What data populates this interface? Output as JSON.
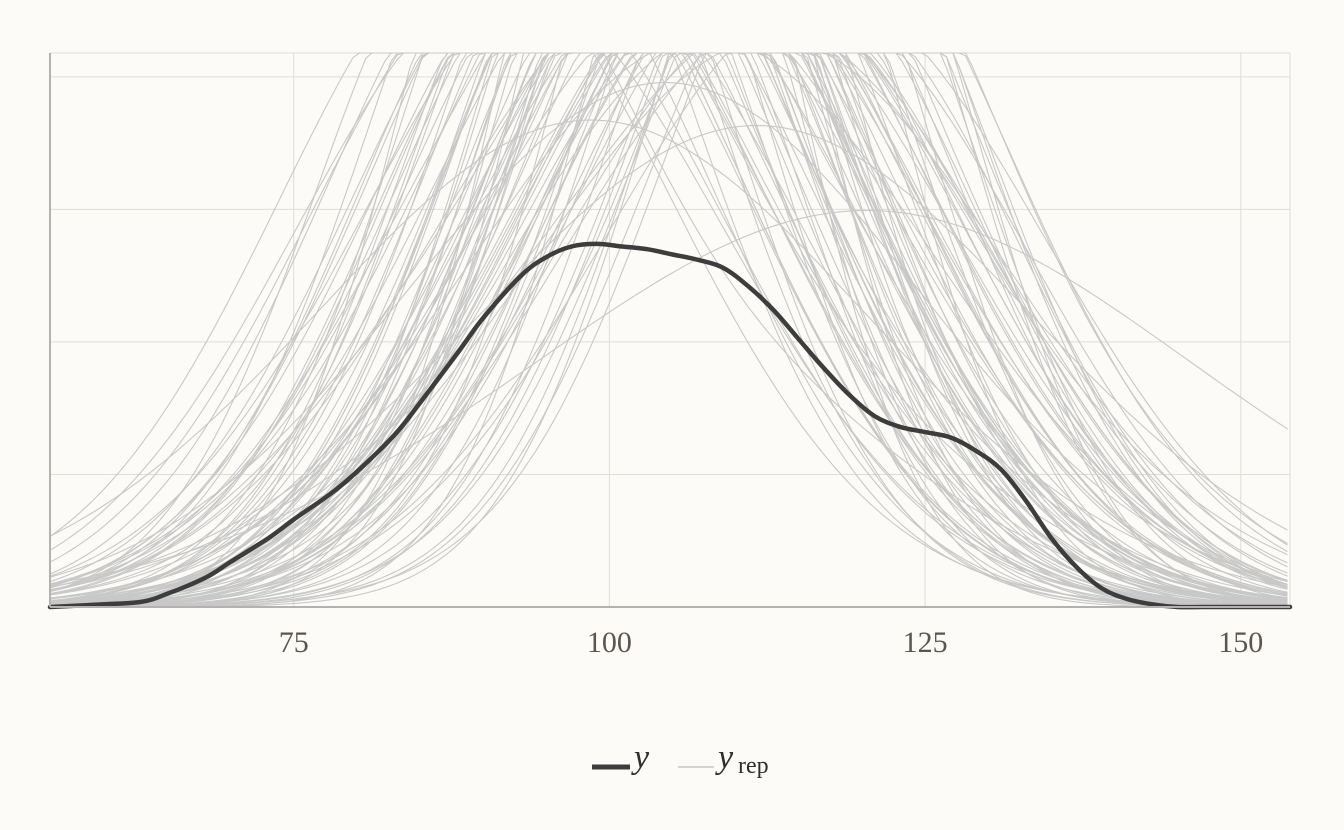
{
  "chart_data": {
    "type": "line",
    "title": "",
    "xlabel": "",
    "ylabel": "",
    "xlim": [
      55.7,
      153.9
    ],
    "ylim": [
      0,
      0.0209
    ],
    "x_ticks": [
      75,
      100,
      125,
      150
    ],
    "x_tick_labels": [
      "75",
      "100",
      "125",
      "150"
    ],
    "y_gridlines": [
      0.005,
      0.01,
      0.015,
      0.02
    ],
    "y_tick_labels_shown": false,
    "grid": true,
    "legend_position": "bottom",
    "legend": [
      {
        "key": "y",
        "label": "y",
        "style": "thick"
      },
      {
        "key": "yrep",
        "label": "y",
        "subscript": "rep",
        "style": "thin"
      }
    ],
    "colors": {
      "background": "#fcfbf7",
      "grid": "#e0ddd8",
      "axis": "#b5b2ad",
      "y_line": "#3d3d3d",
      "yrep_line": "#c8c8c8",
      "tick_text": "#5a5550"
    },
    "series": [
      {
        "name": "y",
        "x": [
          55.7,
          60,
          63,
          65,
          68,
          70,
          73,
          75,
          78,
          80,
          83,
          85,
          88,
          90,
          93,
          95,
          97,
          99,
          101,
          103,
          105,
          107,
          109,
          111,
          113,
          115,
          117,
          119,
          121,
          123,
          125,
          127,
          129,
          131,
          133,
          135,
          137,
          139,
          141,
          143,
          145,
          147,
          150,
          153.9
        ],
        "values": [
          0.0,
          0.0001,
          0.0002,
          0.0005,
          0.0011,
          0.0017,
          0.0026,
          0.0033,
          0.0043,
          0.0051,
          0.0065,
          0.0077,
          0.0096,
          0.0109,
          0.0125,
          0.0132,
          0.0136,
          0.0137,
          0.0136,
          0.0135,
          0.0133,
          0.0131,
          0.0128,
          0.0121,
          0.0112,
          0.0101,
          0.009,
          0.008,
          0.0072,
          0.0068,
          0.0066,
          0.0064,
          0.0059,
          0.0052,
          0.004,
          0.0026,
          0.0015,
          0.0007,
          0.0003,
          0.0001,
          0.0,
          0.0,
          0.0,
          0.0
        ]
      }
    ],
    "yrep_draws": {
      "count": 100,
      "description_x_range": [
        55.7,
        153.9
      ],
      "example_peaks": [
        {
          "x": 107.5,
          "y": 0.0209
        },
        {
          "x": 104,
          "y": 0.0193
        },
        {
          "x": 111.5,
          "y": 0.0176
        },
        {
          "x": 98.5,
          "y": 0.0178
        },
        {
          "x": 120,
          "y": 0.0144
        }
      ]
    }
  }
}
